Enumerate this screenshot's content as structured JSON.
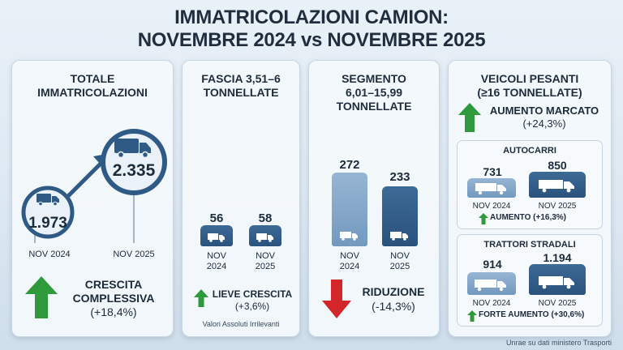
{
  "title": {
    "line1": "IMMATRICOLAZIONI CAMION:",
    "line2": "NOVEMBRE 2024 vs NOVEMBRE 2025"
  },
  "panel_total": {
    "title_line1": "TOTALE",
    "title_line2": "IMMATRICOLAZIONI",
    "value_2024": "1.973",
    "value_2025": "2.335",
    "label_2024": "NOV 2024",
    "label_2025": "NOV 2025",
    "growth_line1": "CRESCITA",
    "growth_line2": "COMPLESSIVA",
    "growth_pct": "(+18,4%)"
  },
  "panel_light": {
    "title_line1": "FASCIA 3,51–6",
    "title_line2": "TONNELLATE",
    "value_2024": "56",
    "value_2025": "58",
    "label_2024_a": "NOV",
    "label_2024_b": "2024",
    "label_2025_a": "NOV",
    "label_2025_b": "2025",
    "trend": "LIEVE CRESCITA",
    "trend_pct": "(+3,6%)",
    "note": "Valori Assoluti Irrilevanti"
  },
  "panel_medium": {
    "title_line1": "SEGMENTO",
    "title_line2": "6,01–15,99 TONNELLATE",
    "value_2024": "272",
    "value_2025": "233",
    "label_2024_a": "NOV",
    "label_2024_b": "2024",
    "label_2025_a": "NOV",
    "label_2025_b": "2025",
    "trend": "RIDUZIONE",
    "trend_pct": "(-14,3%)"
  },
  "panel_heavy": {
    "title_line1": "VEICOLI PESANTI",
    "title_line2": "(≥16 TONNELLATE)",
    "trend": "AUMENTO MARCATO",
    "trend_pct": "(+24,3%)",
    "autocarri": {
      "title": "AUTOCARRI",
      "value_2024": "731",
      "value_2025": "850",
      "label_2024": "NOV 2024",
      "label_2025": "NOV 2025",
      "trend": "AUMENTO (+16,3%)"
    },
    "trattori": {
      "title": "TRATTORI STRADALI",
      "value_2024": "914",
      "value_2025": "1.194",
      "label_2024": "NOV 2024",
      "label_2025": "NOV 2025",
      "trend": "FORTE AUMENTO (+30,6%)"
    }
  },
  "source": "Unrae su dati ministero Trasporti",
  "colors": {
    "up": "#2e9a3c",
    "down": "#d3262b",
    "bar_dark": "#2f5a86",
    "bar_light": "#86a8ca"
  }
}
